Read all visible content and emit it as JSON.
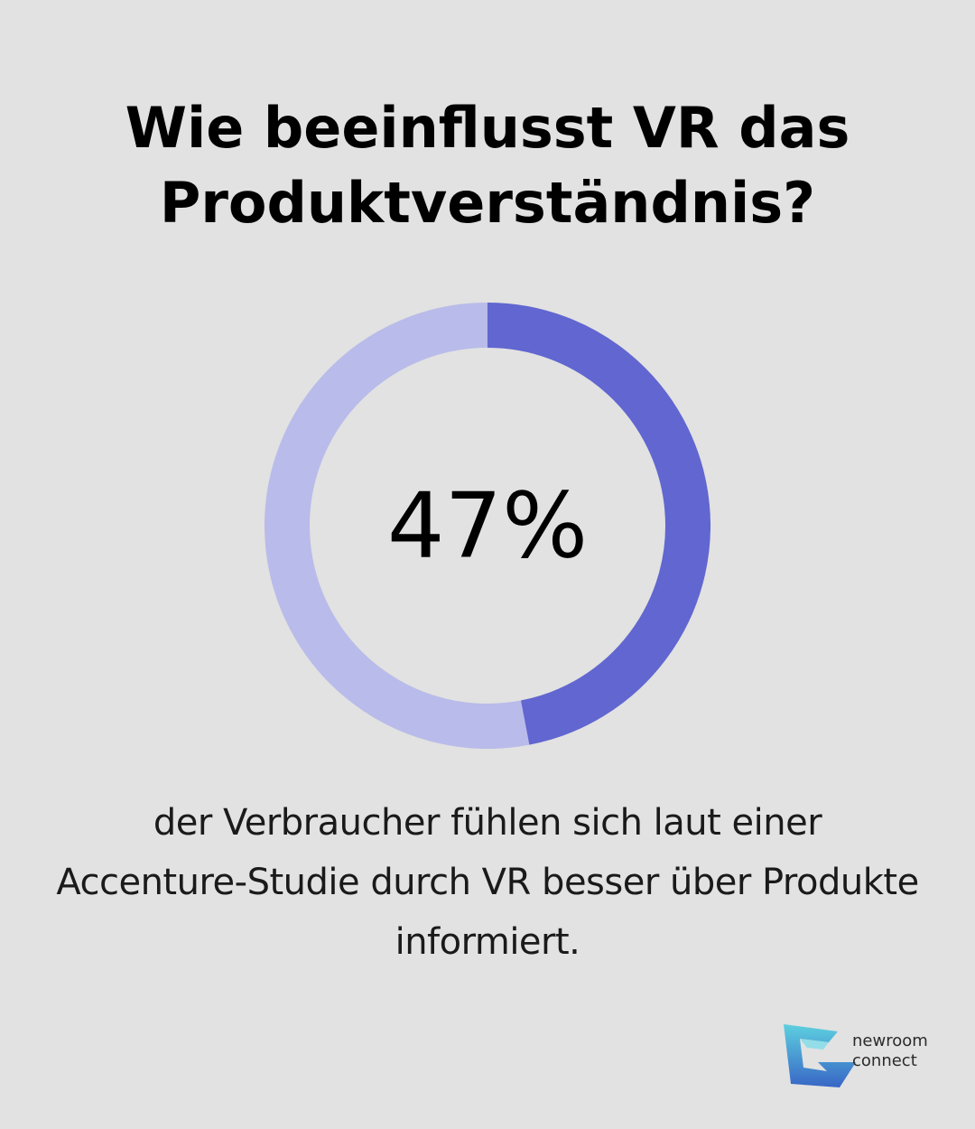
{
  "title": "Wie beeinflusst VR das Produktverständnis?",
  "chart_data": {
    "type": "pie",
    "style": "donut",
    "value_label": "47%",
    "slices": [
      {
        "value": 47,
        "color": "#6166d0"
      },
      {
        "value": 53,
        "color": "#b9bbea"
      }
    ]
  },
  "description": "der Verbraucher fühlen sich laut einer Accenture-Studie durch VR besser über Produkte informiert.",
  "logo": {
    "line1": "newroom",
    "line2": "connect"
  },
  "colors": {
    "background": "#e1e2e1",
    "accent": "#6166d0",
    "accent_light": "#b9bbea",
    "logo_teal": "#4ec3d8",
    "logo_blue": "#2f66c8"
  }
}
